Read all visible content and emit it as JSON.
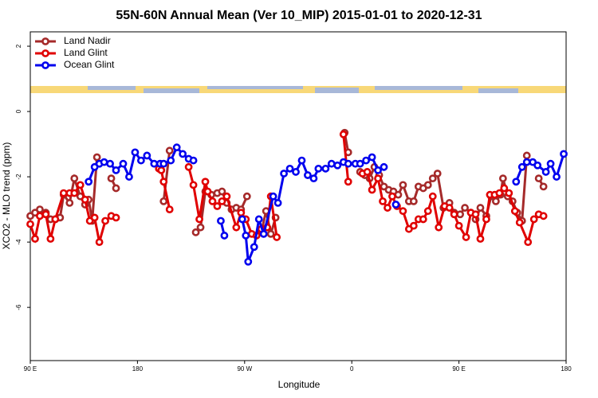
{
  "chart_data": {
    "type": "line",
    "title": "55N-60N Annual Mean (Ver 10_MIP)   2015-01-01 to 2020-12-31",
    "x_label": "Longitude",
    "y_label": "XCO2 - MLO trend (ppm)",
    "xlim": [
      90,
      540
    ],
    "ylim": [
      -7.63,
      2.44
    ],
    "xticks": [
      {
        "value": 90,
        "label": "90 E"
      },
      180,
      {
        "value": 270,
        "label": "90 W"
      },
      {
        "value": 360,
        "label": "0"
      },
      {
        "value": 450,
        "label": "90 E"
      },
      {
        "value": 540,
        "label": "180"
      }
    ],
    "yticks": [
      -6,
      -4,
      -2,
      0,
      2
    ],
    "grid": false,
    "legend": "top-left",
    "series": [
      {
        "name": "Land Nadir",
        "color": "#a52a2a",
        "x": [
          90,
          94,
          98,
          103,
          107,
          111,
          115,
          118,
          123,
          127,
          132,
          136,
          139,
          142,
          146,
          152,
          158,
          162,
          185,
          202,
          207,
          218,
          229,
          233,
          237,
          242,
          247,
          251,
          255,
          259,
          263,
          267,
          272,
          278,
          284,
          288,
          292,
          296,
          325,
          354,
          357,
          362,
          367,
          371,
          375,
          379,
          383,
          387,
          391,
          395,
          399,
          403,
          408,
          412,
          416,
          420,
          424,
          428,
          432,
          437,
          442,
          446,
          451,
          455,
          460,
          464,
          468,
          473,
          477,
          481,
          485,
          487,
          491,
          495,
          499,
          503,
          507,
          512,
          517,
          521
        ],
        "values": [
          -3.2,
          -3.1,
          -3.0,
          -3.1,
          -3.3,
          -3.3,
          -3.25,
          -2.55,
          -2.8,
          -2.05,
          -2.6,
          -2.85,
          -2.7,
          -3.35,
          -1.4,
          null,
          -2.05,
          -2.35,
          null,
          -2.75,
          -1.2,
          null,
          -3.7,
          -3.55,
          -2.45,
          -2.55,
          -2.5,
          -2.45,
          -2.8,
          -3.0,
          -2.95,
          -3.0,
          -2.6,
          null,
          -3.7,
          -3.05,
          -3.75,
          -3.25,
          null,
          -0.65,
          -1.25,
          null,
          -1.85,
          -1.95,
          -2.05,
          -1.7,
          -1.95,
          -2.3,
          -2.4,
          -2.45,
          -2.55,
          -2.25,
          -2.75,
          -2.75,
          -2.3,
          -2.35,
          -2.25,
          -2.05,
          -1.9,
          -2.95,
          -2.8,
          -3.1,
          -3.15,
          -2.95,
          -3.1,
          -3.3,
          -2.95,
          -3.2,
          -2.6,
          -2.75,
          -2.55,
          -2.05,
          -2.6,
          -2.75,
          -3.1,
          -3.35,
          -1.35,
          null,
          -2.05,
          -2.3
        ]
      },
      {
        "name": "Land Glint",
        "color": "#e00000",
        "x": [
          90,
          94,
          98,
          103,
          107,
          111,
          118,
          123,
          127,
          132,
          136,
          140,
          144,
          148,
          153,
          158,
          162,
          180,
          198,
          200,
          202,
          207,
          220,
          223,
          227,
          232,
          237,
          239,
          243,
          247,
          251,
          255,
          263,
          267,
          271,
          276,
          280,
          284,
          289,
          292,
          297,
          320,
          353,
          357,
          362,
          369,
          373,
          377,
          382,
          386,
          390,
          394,
          398,
          403,
          408,
          412,
          416,
          420,
          424,
          428,
          433,
          438,
          442,
          446,
          450,
          456,
          460,
          464,
          468,
          473,
          476,
          480,
          484,
          488,
          492,
          497,
          501,
          508,
          513,
          517,
          521
        ],
        "values": [
          -3.45,
          -3.9,
          -3.2,
          -3.15,
          -3.9,
          -3.3,
          -2.5,
          -2.5,
          -2.5,
          -2.25,
          -2.7,
          -3.35,
          -3.25,
          -4.0,
          -3.35,
          -3.2,
          -3.25,
          null,
          -1.75,
          -1.8,
          -2.15,
          -3.0,
          null,
          -1.7,
          -2.25,
          -3.3,
          -2.15,
          -2.45,
          -2.75,
          -2.9,
          -2.75,
          -2.6,
          -3.55,
          -3.1,
          -3.3,
          -3.75,
          -3.8,
          -3.6,
          -3.55,
          -2.6,
          -3.85,
          null,
          -0.7,
          -2.15,
          null,
          -1.9,
          -1.85,
          -2.4,
          -2.05,
          -2.75,
          -2.95,
          -2.6,
          -2.9,
          -3.05,
          -3.6,
          -3.5,
          -3.3,
          -3.3,
          -3.05,
          -2.6,
          -3.55,
          -2.9,
          -2.95,
          -3.15,
          -3.5,
          -3.85,
          -3.1,
          -3.15,
          -3.9,
          -3.3,
          -2.55,
          -2.55,
          -2.5,
          -2.35,
          -2.5,
          -3.05,
          -3.4,
          -4.0,
          -3.3,
          -3.15,
          -3.2
        ]
      },
      {
        "name": "Ocean Glint",
        "color": "#0000ee",
        "x": [
          139,
          144,
          148,
          152,
          157,
          162,
          168,
          173,
          178,
          183,
          188,
          194,
          199,
          202,
          208,
          213,
          218,
          223,
          227,
          240,
          250,
          253,
          259,
          268,
          271,
          273,
          278,
          282,
          286,
          294,
          298,
          303,
          308,
          313,
          318,
          323,
          328,
          332,
          338,
          343,
          348,
          353,
          357,
          363,
          367,
          372,
          377,
          382,
          387,
          391,
          397,
          450,
          498,
          503,
          507,
          512,
          516,
          523,
          527,
          532,
          538
        ],
        "values": [
          -2.15,
          -1.7,
          -1.6,
          -1.55,
          -1.6,
          -1.8,
          -1.6,
          -2.0,
          -1.25,
          -1.5,
          -1.35,
          -1.6,
          -1.6,
          -1.6,
          -1.5,
          -1.1,
          -1.3,
          -1.45,
          -1.5,
          null,
          -3.35,
          -3.8,
          null,
          -3.3,
          -3.8,
          -4.6,
          -4.15,
          -3.3,
          -3.75,
          -2.6,
          -2.8,
          -1.9,
          -1.75,
          -1.85,
          -1.5,
          -1.95,
          -2.05,
          -1.75,
          -1.75,
          -1.6,
          -1.65,
          -1.55,
          -1.6,
          -1.6,
          -1.6,
          -1.5,
          -1.4,
          -1.8,
          -1.7,
          null,
          -2.85,
          null,
          -2.15,
          -1.7,
          -1.55,
          -1.55,
          -1.65,
          -1.85,
          -1.6,
          -2.0,
          -1.3
        ]
      }
    ]
  }
}
